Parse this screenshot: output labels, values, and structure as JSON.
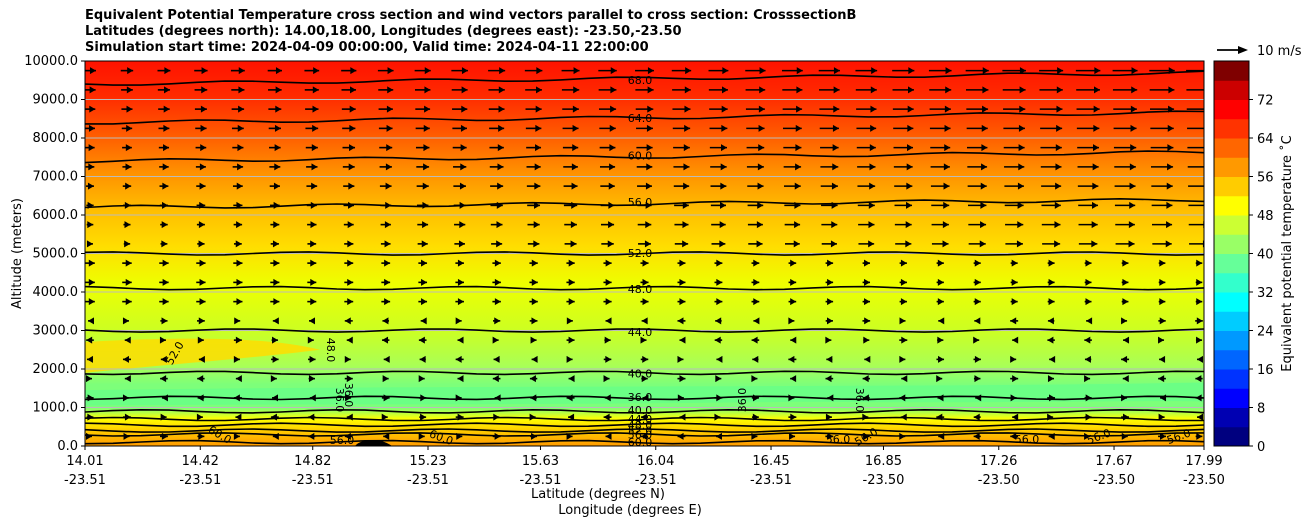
{
  "chart_data": {
    "type": "contour",
    "title_lines": [
      "Equivalent Potential Temperature cross section and wind vectors parallel to cross section: CrosssectionB",
      "Latitudes (degrees north): 14.00,18.00, Longitudes (degrees east): -23.50,-23.50",
      "Simulation start time: 2024-04-09 00:00:00, Valid time: 2024-04-11 22:00:00"
    ],
    "ylabel": "Altitude (meters)",
    "xlabel_lines": [
      "Latitude (degrees N)",
      "Longitude (degrees E)"
    ],
    "ylim": [
      0,
      10000
    ],
    "y_ticks": [
      "0.0",
      "1000.0",
      "2000.0",
      "3000.0",
      "4000.0",
      "5000.0",
      "6000.0",
      "7000.0",
      "8000.0",
      "9000.0",
      "10000.0"
    ],
    "x_ticks": [
      {
        "lat": "14.01",
        "lon": "-23.51"
      },
      {
        "lat": "14.42",
        "lon": "-23.51"
      },
      {
        "lat": "14.82",
        "lon": "-23.51"
      },
      {
        "lat": "15.23",
        "lon": "-23.51"
      },
      {
        "lat": "15.63",
        "lon": "-23.51"
      },
      {
        "lat": "16.04",
        "lon": "-23.51"
      },
      {
        "lat": "16.45",
        "lon": "-23.51"
      },
      {
        "lat": "16.85",
        "lon": "-23.50"
      },
      {
        "lat": "17.26",
        "lon": "-23.50"
      },
      {
        "lat": "17.67",
        "lon": "-23.50"
      },
      {
        "lat": "17.99",
        "lon": "-23.50"
      }
    ],
    "grid": "horizontal",
    "colorbar": {
      "label": "Equivalent potential temperature ˚C",
      "range": [
        0,
        80
      ],
      "ticks": [
        "0",
        "8",
        "16",
        "24",
        "32",
        "40",
        "48",
        "56",
        "64",
        "72"
      ],
      "colormap": "jet"
    },
    "quiver_key": {
      "label": "10 m/s"
    },
    "contours": [
      {
        "label": "68.0",
        "altitude": 9400
      },
      {
        "label": "64.0",
        "altitude": 8400
      },
      {
        "label": "60.0",
        "altitude": 7400
      },
      {
        "label": "56.0",
        "altitude": 6200
      },
      {
        "label": "52.0",
        "altitude": 5000
      },
      {
        "label": "48.0",
        "altitude": 4100
      },
      {
        "label": "44.0",
        "altitude": 3000
      },
      {
        "label": "40.0",
        "altitude": 1900
      },
      {
        "label": "36.0",
        "altitude": 1250
      },
      {
        "label": "40.0",
        "altitude": 900
      },
      {
        "label": "44.0",
        "altitude": 700
      },
      {
        "label": "48.0",
        "altitude": 550
      },
      {
        "label": "52.0",
        "altitude": 400
      },
      {
        "label": "56.0",
        "altitude": 300
      },
      {
        "label": "60.0",
        "altitude": 100
      }
    ],
    "extra_contour_labels": [
      "52.0",
      "48.0",
      "36.0",
      "36.0",
      "36.0",
      "36.0",
      "60.0",
      "60.0",
      "56.0",
      "56.0",
      "56.0",
      "56.0",
      "56.0",
      "56.0"
    ],
    "wind": "westerly near 8-14 m/s above 5000 m, weak easterly/mixed below 4000 m"
  }
}
